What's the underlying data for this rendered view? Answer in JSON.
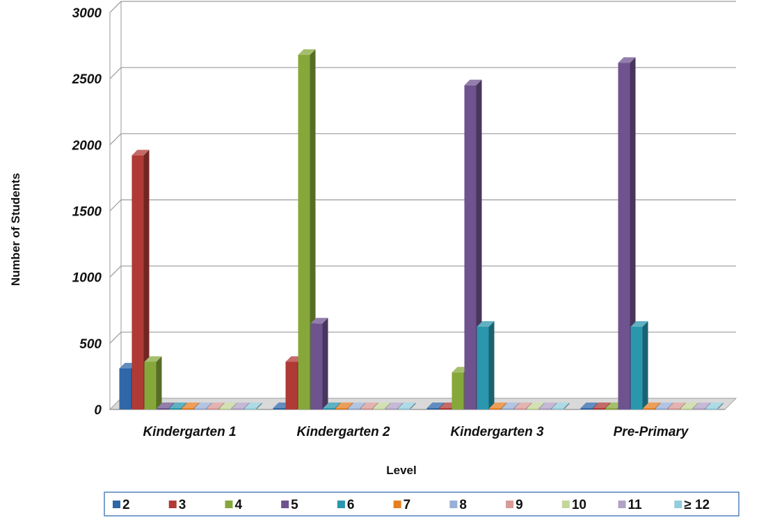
{
  "chart_data": {
    "type": "bar",
    "title": "",
    "xlabel": "Level",
    "ylabel": "Number of Students",
    "ylim": [
      0,
      3000
    ],
    "yticks": [
      0,
      500,
      1000,
      1500,
      2000,
      2500,
      3000
    ],
    "ytick_labels": [
      "0",
      "500",
      "1000",
      "1500",
      "2000",
      "2500",
      "3000"
    ],
    "grid": true,
    "legend_position": "bottom",
    "categories": [
      "Kindergarten 1",
      "Kindergarten 2",
      "Kindergarten 3",
      "Pre-Primary"
    ],
    "series": [
      {
        "name": "2",
        "color": "#2F67A8",
        "values": [
          310,
          5,
          5,
          5
        ]
      },
      {
        "name": "3",
        "color": "#B03A36",
        "values": [
          1920,
          360,
          5,
          5
        ]
      },
      {
        "name": "4",
        "color": "#86A83A",
        "values": [
          360,
          2680,
          280,
          5
        ]
      },
      {
        "name": "5",
        "color": "#6E538F",
        "values": [
          5,
          650,
          2450,
          2620
        ]
      },
      {
        "name": "6",
        "color": "#2A97AE",
        "values": [
          5,
          5,
          625,
          625
        ]
      },
      {
        "name": "7",
        "color": "#E77F22",
        "values": [
          0,
          5,
          5,
          5
        ]
      },
      {
        "name": "8",
        "color": "#98B0D8",
        "values": [
          0,
          0,
          0,
          0
        ]
      },
      {
        "name": "9",
        "color": "#D99A97",
        "values": [
          0,
          0,
          0,
          0
        ]
      },
      {
        "name": "10",
        "color": "#C3D69B",
        "values": [
          0,
          0,
          0,
          0
        ]
      },
      {
        "name": "11",
        "color": "#B3A2C7",
        "values": [
          0,
          0,
          0,
          0
        ]
      },
      {
        "name": "≥ 12",
        "color": "#93CDDD",
        "values": [
          0,
          0,
          0,
          0
        ]
      }
    ]
  }
}
